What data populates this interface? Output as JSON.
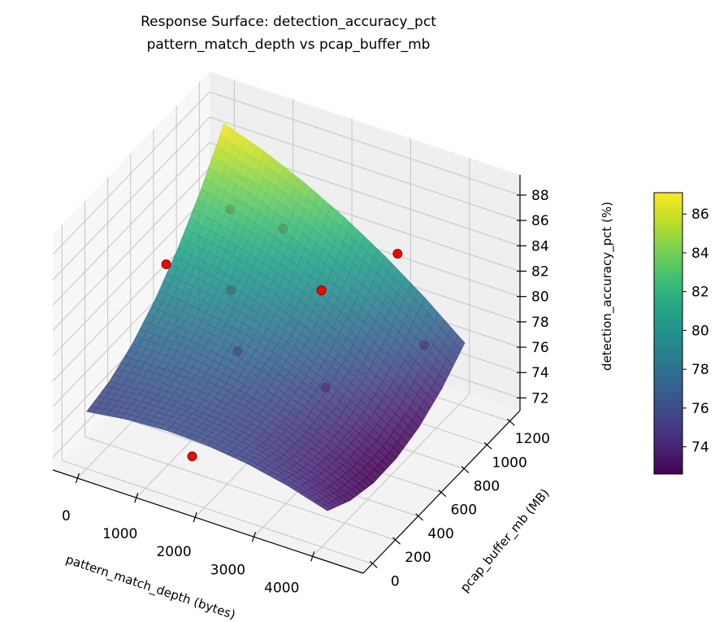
{
  "chart_data": {
    "type": "surface3d",
    "title": "Response Surface: detection_accuracy_pct",
    "subtitle": "pattern_match_depth vs pcap_buffer_mb",
    "xlabel": "pattern_match_depth (bytes)",
    "ylabel": "pcap_buffer_mb (MB)",
    "zlabel": "detection_accuracy_pct (%)",
    "xlim": [
      -420,
      4860
    ],
    "ylim": [
      -80,
      1290
    ],
    "zlim": [
      71.0,
      89.6
    ],
    "xticks": [
      0,
      1000,
      2000,
      3000,
      4000
    ],
    "yticks": [
      0,
      200,
      400,
      600,
      800,
      1000,
      1200
    ],
    "zticks": [
      72,
      74,
      76,
      78,
      80,
      82,
      84,
      86,
      88
    ],
    "grid": true,
    "colormap": "viridis",
    "colorbar": {
      "clim": [
        72.6,
        87.1
      ],
      "ticks": [
        74,
        76,
        78,
        80,
        82,
        84,
        86
      ],
      "placement": "right"
    },
    "surface": {
      "x": [
        0,
        683,
        1365,
        2048,
        2731,
        3413,
        4096
      ],
      "y": [
        0,
        200,
        400,
        600,
        800,
        1000,
        1200
      ],
      "z": [
        [
          75.5,
          75.94,
          76.11,
          76.0,
          75.61,
          74.94,
          74.0
        ],
        [
          76.03,
          76.21,
          76.11,
          75.74,
          75.09,
          74.15,
          72.94
        ],
        [
          77.11,
          77.03,
          76.67,
          76.03,
          75.11,
          73.92,
          72.44
        ],
        [
          78.75,
          78.4,
          77.78,
          76.88,
          75.69,
          74.24,
          72.5
        ],
        [
          80.94,
          80.33,
          79.44,
          78.28,
          76.83,
          75.11,
          73.11
        ],
        [
          83.69,
          82.82,
          81.67,
          80.24,
          78.53,
          76.54,
          74.28
        ],
        [
          87.0,
          85.86,
          84.44,
          82.75,
          80.78,
          78.53,
          76.0
        ]
      ]
    },
    "points": {
      "color": "#ff0000",
      "values": [
        {
          "x": 1100,
          "y": 130,
          "z": 87.6
        },
        {
          "x": 2825,
          "y": 600,
          "z": 83.8
        },
        {
          "x": 3350,
          "y": 996,
          "z": 83.8
        },
        {
          "x": 200,
          "y": 1150,
          "z": 81.0
        },
        {
          "x": 1200,
          "y": 1100,
          "z": 81.5
        },
        {
          "x": 900,
          "y": 800,
          "z": 79.0
        },
        {
          "x": 1400,
          "y": 600,
          "z": 76.8
        },
        {
          "x": 3600,
          "y": 1100,
          "z": 76.0
        },
        {
          "x": 2700,
          "y": 700,
          "z": 75.0
        },
        {
          "x": 1600,
          "y": 100,
          "z": 73.5
        }
      ]
    }
  }
}
